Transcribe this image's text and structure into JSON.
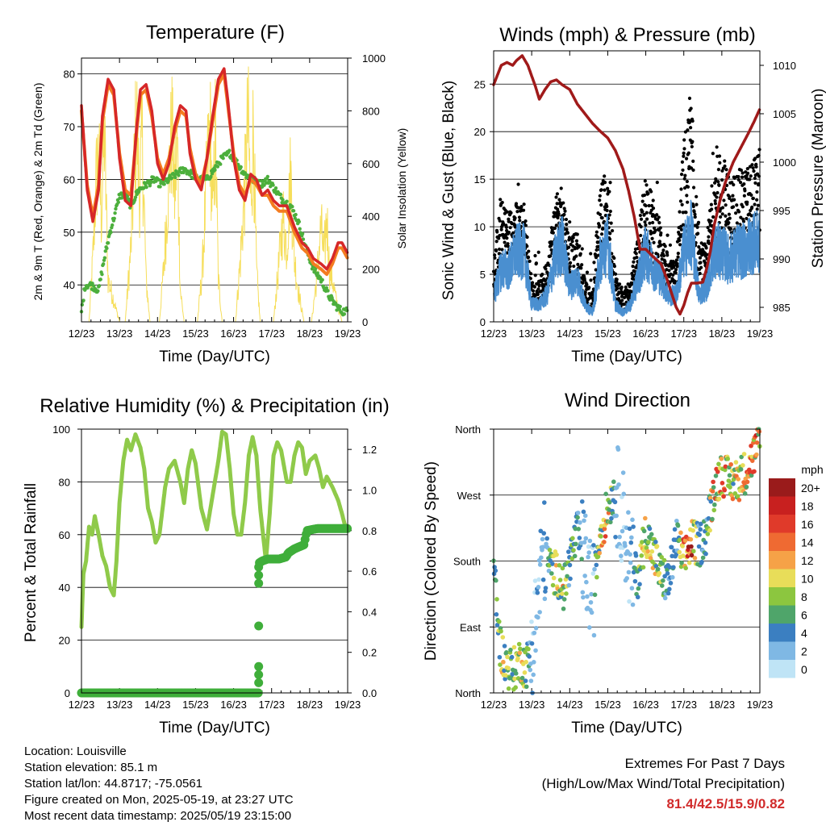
{
  "chart_data": [
    {
      "id": "temp",
      "type": "line",
      "title": "Temperature (F)",
      "xlabel": "Time (Day/UTC)",
      "ylabel": "2m & 9m T (Red, Orange) & 2m Td (Green)",
      "ylabel_right": "Solar Insolation (Yellow)",
      "xlim": [
        12,
        19
      ],
      "ylim": [
        33,
        83
      ],
      "yticks": [
        40,
        50,
        60,
        70,
        80
      ],
      "ylim_right": [
        0,
        1000
      ],
      "yticks_right": [
        0,
        200,
        400,
        600,
        800,
        1000
      ],
      "x_ticks": [
        "12/23",
        "13/23",
        "14/23",
        "15/23",
        "16/23",
        "17/23",
        "18/23",
        "19/23"
      ],
      "grid": true,
      "series": [
        {
          "color": "#d62728",
          "x": [
            12.0,
            12.15,
            12.3,
            12.45,
            12.55,
            12.7,
            12.85,
            13.0,
            13.15,
            13.3,
            13.45,
            13.55,
            13.7,
            13.85,
            14.0,
            14.15,
            14.3,
            14.45,
            14.6,
            14.75,
            14.85,
            15.0,
            15.15,
            15.3,
            15.45,
            15.6,
            15.75,
            15.85,
            16.0,
            16.15,
            16.3,
            16.45,
            16.6,
            16.75,
            16.9,
            17.05,
            17.2,
            17.4,
            17.6,
            17.8,
            17.95,
            18.1,
            18.3,
            18.45,
            18.6,
            18.75,
            18.85,
            19.0
          ],
          "values": [
            74,
            58,
            52,
            58,
            72,
            79,
            77,
            64,
            56,
            55,
            70,
            77,
            78,
            73,
            63,
            60,
            63,
            70,
            74,
            73,
            65,
            60,
            58,
            64,
            72,
            79,
            81,
            75,
            64,
            58,
            56,
            61,
            60,
            57,
            58,
            56,
            55,
            55,
            51,
            48,
            47,
            45,
            44,
            43,
            45,
            48,
            48,
            46
          ]
        },
        {
          "color": "#f47c20",
          "x": [
            12.0,
            12.15,
            12.3,
            12.45,
            12.55,
            12.7,
            12.85,
            13.0,
            13.15,
            13.3,
            13.45,
            13.55,
            13.7,
            13.85,
            14.0,
            14.15,
            14.3,
            14.45,
            14.6,
            14.75,
            14.85,
            15.0,
            15.15,
            15.3,
            15.45,
            15.6,
            15.75,
            15.85,
            16.0,
            16.15,
            16.3,
            16.45,
            16.6,
            16.75,
            16.9,
            17.05,
            17.2,
            17.4,
            17.6,
            17.8,
            17.95,
            18.1,
            18.3,
            18.45,
            18.6,
            18.75,
            18.85,
            19.0
          ],
          "values": [
            73,
            59,
            53,
            59,
            71,
            78,
            76,
            65,
            58,
            57,
            69,
            76,
            77,
            72,
            64,
            61,
            64,
            69,
            73,
            72,
            66,
            61,
            59,
            64,
            71,
            78,
            80,
            74,
            65,
            59,
            57,
            60,
            59,
            57,
            57,
            55,
            54,
            54,
            50,
            47,
            46,
            44,
            43,
            42,
            44,
            47,
            47,
            45
          ]
        },
        {
          "color": "#4caf3c",
          "x": [
            12.0,
            12.1,
            12.25,
            12.45,
            12.6,
            12.75,
            12.9,
            13.0,
            13.15,
            13.3,
            13.5,
            13.7,
            13.9,
            14.1,
            14.3,
            14.5,
            14.7,
            14.9,
            15.1,
            15.3,
            15.5,
            15.7,
            15.9,
            16.1,
            16.3,
            16.5,
            16.7,
            16.9,
            17.1,
            17.3,
            17.5,
            17.7,
            17.9,
            18.1,
            18.3,
            18.5,
            18.7,
            18.85,
            19.0
          ],
          "values": [
            35,
            40,
            40,
            39,
            45,
            50,
            54,
            57,
            57,
            55,
            58,
            59,
            60,
            59,
            60,
            61,
            62,
            61,
            60,
            60,
            62,
            64,
            65,
            63,
            61,
            60,
            59,
            60,
            58,
            56,
            55,
            52,
            47,
            43,
            41,
            38,
            36,
            35,
            35
          ]
        },
        {
          "color": "#f6de5a",
          "x": [
            12.0,
            12.2,
            12.3,
            12.38,
            12.45,
            12.52,
            12.6,
            12.7,
            13.0,
            13.15,
            13.3,
            13.38,
            13.45,
            13.52,
            13.6,
            13.7,
            13.8,
            14.05,
            14.18,
            14.3,
            14.38,
            14.45,
            14.52,
            14.6,
            14.7,
            14.85,
            15.05,
            15.18,
            15.3,
            15.38,
            15.45,
            15.52,
            15.6,
            15.7,
            15.85,
            16.05,
            16.18,
            16.3,
            16.38,
            16.45,
            16.52,
            16.6,
            16.7,
            16.85,
            17.05,
            17.18,
            17.3,
            17.4,
            17.5,
            17.6,
            17.7,
            17.85,
            18.05,
            18.18,
            18.3,
            18.38,
            18.45,
            18.52,
            18.6,
            18.7,
            18.85,
            19.0
          ],
          "values": [
            0,
            0,
            300,
            650,
            800,
            500,
            900,
            200,
            0,
            0,
            350,
            700,
            980,
            600,
            850,
            200,
            0,
            0,
            300,
            700,
            900,
            600,
            850,
            150,
            0,
            0,
            0,
            250,
            700,
            930,
            500,
            880,
            200,
            0,
            0,
            0,
            300,
            650,
            950,
            550,
            920,
            250,
            0,
            0,
            0,
            250,
            500,
            350,
            700,
            300,
            150,
            0,
            0,
            200,
            450,
            300,
            500,
            250,
            200,
            100,
            0,
            0
          ]
        }
      ]
    },
    {
      "id": "winds",
      "type": "scatter",
      "title": "Winds (mph) & Pressure (mb)",
      "xlabel": "Time (Day/UTC)",
      "ylabel": "Sonic Wind & Gust (Blue, Black)",
      "ylabel_right": "Station Pressure (Maroon)",
      "xlim": [
        12,
        19
      ],
      "ylim": [
        0,
        28.5
      ],
      "yticks": [
        0,
        5,
        10,
        15,
        20,
        25
      ],
      "ylim_right": [
        983.5,
        1011.5
      ],
      "yticks_right": [
        985,
        990,
        995,
        1000,
        1005,
        1010
      ],
      "x_ticks": [
        "12/23",
        "13/23",
        "14/23",
        "15/23",
        "16/23",
        "17/23",
        "18/23",
        "19/23"
      ],
      "grid": true,
      "wind_envelope": {
        "x": [
          12.0,
          12.2,
          12.4,
          12.6,
          12.8,
          13.0,
          13.2,
          13.4,
          13.6,
          13.8,
          14.0,
          14.2,
          14.4,
          14.6,
          14.8,
          15.0,
          15.2,
          15.4,
          15.6,
          15.8,
          16.0,
          16.2,
          16.4,
          16.6,
          16.8,
          17.0,
          17.2,
          17.4,
          17.6,
          17.8,
          18.0,
          18.2,
          18.4,
          18.6,
          18.8,
          19.0
        ],
        "wind_values": [
          3,
          6,
          6,
          8,
          8,
          2,
          2,
          3,
          7,
          9,
          4,
          5,
          2,
          1,
          7,
          9,
          2,
          1,
          2,
          5,
          8,
          6,
          5,
          3,
          3,
          8,
          10,
          3,
          4,
          8,
          8,
          7,
          8,
          8,
          9,
          9
        ],
        "gust_values": [
          7,
          12,
          11,
          12,
          12,
          4,
          4,
          6,
          12,
          14,
          8,
          9,
          4,
          3,
          14,
          15,
          5,
          3,
          4,
          9,
          15,
          12,
          10,
          6,
          6,
          18,
          22,
          7,
          8,
          16,
          17,
          14,
          15,
          15,
          16,
          17
        ]
      },
      "pressure": {
        "color": "#a01a1a",
        "x": [
          12.0,
          12.1,
          12.2,
          12.35,
          12.5,
          12.6,
          12.75,
          12.9,
          13.1,
          13.2,
          13.35,
          13.5,
          13.65,
          13.8,
          14.0,
          14.2,
          14.4,
          14.6,
          14.8,
          15.0,
          15.2,
          15.4,
          15.55,
          15.7,
          15.85,
          16.0,
          16.2,
          16.4,
          16.55,
          16.7,
          16.8,
          16.9,
          17.0,
          17.1,
          17.2,
          17.35,
          17.5,
          17.6,
          17.7,
          17.8,
          17.95,
          18.1,
          18.3,
          18.5,
          18.7,
          18.85,
          19.0
        ],
        "values": [
          1008.0,
          1009.0,
          1010.0,
          1010.3,
          1010.0,
          1010.5,
          1011.0,
          1010.0,
          1007.8,
          1006.5,
          1007.5,
          1008.3,
          1008.5,
          1008.0,
          1007.5,
          1006.0,
          1005.0,
          1004.0,
          1003.2,
          1002.5,
          1001.2,
          999.3,
          997.0,
          994.3,
          991.0,
          991.0,
          990.2,
          989.5,
          988.0,
          986.2,
          985.0,
          984.3,
          985.2,
          986.5,
          987.5,
          987.5,
          987.6,
          989.0,
          990.8,
          993.5,
          996.0,
          998.0,
          1000.0,
          1001.5,
          1003.0,
          1004.2,
          1005.5
        ]
      }
    },
    {
      "id": "rh",
      "type": "line",
      "title": "Relative Humidity (%) & Precipitation (in)",
      "xlabel": "Time (Day/UTC)",
      "ylabel": "Percent & Total Rainfall",
      "xlim": [
        12,
        19
      ],
      "ylim": [
        0,
        100
      ],
      "yticks": [
        0,
        20,
        40,
        60,
        80,
        100
      ],
      "ylim_right": [
        0,
        1.3
      ],
      "yticks_right": [
        "0.0",
        "0.2",
        "0.4",
        "0.6",
        "0.8",
        "1.0",
        "1.2"
      ],
      "x_ticks": [
        "12/23",
        "13/23",
        "14/23",
        "15/23",
        "16/23",
        "17/23",
        "18/23",
        "19/23"
      ],
      "grid": true,
      "series": [
        {
          "color": "#8fca4a",
          "x": [
            12.0,
            12.05,
            12.12,
            12.2,
            12.28,
            12.35,
            12.45,
            12.55,
            12.65,
            12.75,
            12.85,
            12.92,
            13.0,
            13.1,
            13.2,
            13.3,
            13.42,
            13.55,
            13.65,
            13.75,
            13.85,
            13.95,
            14.05,
            14.2,
            14.3,
            14.45,
            14.6,
            14.7,
            14.8,
            14.9,
            15.0,
            15.15,
            15.3,
            15.45,
            15.6,
            15.7,
            15.8,
            15.9,
            16.0,
            16.1,
            16.2,
            16.3,
            16.4,
            16.5,
            16.6,
            16.7,
            16.85,
            16.95,
            17.05,
            17.15,
            17.25,
            17.4,
            17.5,
            17.6,
            17.7,
            17.8,
            17.9,
            18.0,
            18.15,
            18.25,
            18.35,
            18.45,
            18.6,
            18.75,
            18.85,
            18.92,
            19.0
          ],
          "values": [
            25,
            45,
            50,
            63,
            60,
            67,
            60,
            52,
            48,
            40,
            37,
            50,
            72,
            88,
            96,
            92,
            98,
            93,
            85,
            70,
            65,
            57,
            60,
            78,
            85,
            88,
            80,
            72,
            85,
            92,
            87,
            70,
            62,
            75,
            88,
            99,
            98,
            85,
            68,
            60,
            60,
            72,
            90,
            97,
            90,
            70,
            50,
            68,
            90,
            95,
            92,
            80,
            80,
            90,
            95,
            93,
            83,
            88,
            90,
            85,
            78,
            82,
            78,
            73,
            68,
            64,
            62
          ]
        },
        {
          "color": "#3fae3a",
          "x": [
            12.0,
            16.65,
            16.67,
            16.75,
            16.9,
            17.2,
            17.38,
            17.44,
            17.6,
            17.85,
            17.93,
            18.2,
            18.8,
            19.0
          ],
          "values": [
            0,
            0,
            0.64,
            0.65,
            0.66,
            0.66,
            0.67,
            0.69,
            0.71,
            0.73,
            0.8,
            0.81,
            0.81,
            0.81
          ]
        }
      ]
    },
    {
      "id": "wdir",
      "type": "scatter",
      "title": "Wind Direction",
      "xlabel": "Time (Day/UTC)",
      "ylabel": "Direction (Colored By Speed)",
      "xlim": [
        12,
        19
      ],
      "ylim": [
        0,
        360
      ],
      "yticks": [
        "North",
        "East",
        "South",
        "West",
        "North"
      ],
      "x_ticks": [
        "12/23",
        "13/23",
        "14/23",
        "15/23",
        "16/23",
        "17/23",
        "18/23",
        "19/23"
      ],
      "grid": true,
      "direction_trend": {
        "x": [
          12.0,
          12.15,
          12.3,
          12.5,
          12.7,
          12.85,
          13.0,
          13.15,
          13.3,
          13.5,
          13.7,
          13.85,
          14.0,
          14.2,
          14.4,
          14.6,
          14.8,
          15.0,
          15.2,
          15.4,
          15.6,
          15.8,
          16.0,
          16.2,
          16.4,
          16.6,
          16.8,
          17.0,
          17.2,
          17.4,
          17.6,
          17.8,
          18.0,
          18.2,
          18.4,
          18.6,
          18.8,
          19.0
        ],
        "values": [
          180,
          70,
          40,
          30,
          45,
          35,
          60,
          120,
          200,
          170,
          160,
          140,
          180,
          220,
          180,
          130,
          220,
          250,
          280,
          240,
          170,
          160,
          220,
          190,
          160,
          150,
          210,
          180,
          210,
          200,
          220,
          280,
          300,
          290,
          290,
          300,
          320,
          340
        ]
      },
      "colorbar": {
        "title": "mph",
        "labels": [
          "20+",
          "18",
          "16",
          "14",
          "12",
          "10",
          "8",
          "6",
          "4",
          "2",
          "0"
        ],
        "colors": [
          "#9a1b1b",
          "#c8201f",
          "#e03a2a",
          "#ef6a32",
          "#f6a247",
          "#e8dd59",
          "#8cc63f",
          "#4fa56a",
          "#3b7fc1",
          "#7fb8e4",
          "#bfe4f6"
        ]
      }
    }
  ],
  "info": {
    "location": "Location: Louisville",
    "elevation": "Station elevation: 85.1 m",
    "latlon": "Station lat/lon: 44.8717; -75.0561",
    "created": "Figure created on Mon, 2025-05-19, at 23:27 UTC",
    "recent": "Most recent data timestamp: 2025/05/19 23:15:00"
  },
  "extremes": {
    "heading": "Extremes For Past 7 Days",
    "subheading": "(High/Low/Max Wind/Total Precipitation)",
    "values": "81.4/42.5/15.9/0.82"
  }
}
